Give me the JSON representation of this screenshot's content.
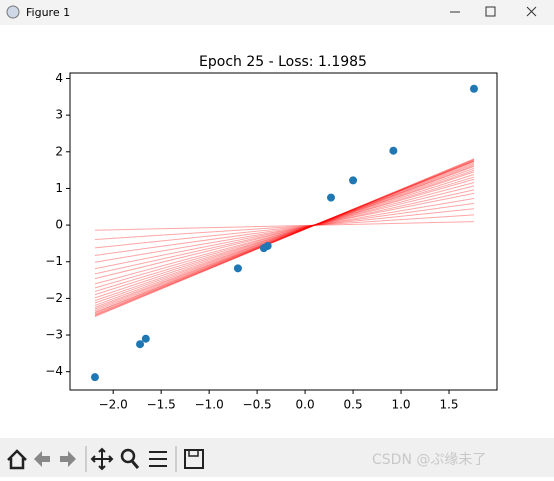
{
  "window": {
    "title": "Figure 1"
  },
  "watermark": "CSDN @ぷ缘未了",
  "chart_data": {
    "type": "scatter",
    "title": "Epoch 25 - Loss: 1.1985",
    "x": [
      -2.19,
      -1.72,
      -1.66,
      -0.7,
      -0.43,
      -0.39,
      0.27,
      0.5,
      0.92,
      1.76
    ],
    "values": [
      -4.15,
      -3.25,
      -3.1,
      -1.18,
      -0.63,
      -0.57,
      0.75,
      1.22,
      2.03,
      3.72
    ],
    "color": "#1f77b4",
    "fit_lines": {
      "color": "#ff0000",
      "slopes": [
        0.06,
        0.17,
        0.27,
        0.36,
        0.44,
        0.52,
        0.58,
        0.64,
        0.7,
        0.75,
        0.79,
        0.83,
        0.87,
        0.9,
        0.93,
        0.96,
        0.98,
        1.0,
        1.02,
        1.04,
        1.05,
        1.06,
        1.07,
        1.08,
        1.09
      ],
      "intercepts": [
        -0.01,
        -0.02,
        -0.03,
        -0.04,
        -0.05,
        -0.05,
        -0.06,
        -0.06,
        -0.07,
        -0.07,
        -0.08,
        -0.08,
        -0.08,
        -0.09,
        -0.09,
        -0.09,
        -0.1,
        -0.1,
        -0.1,
        -0.1,
        -0.1,
        -0.11,
        -0.11,
        -0.11,
        -0.11
      ]
    },
    "xlim": [
      -2.45,
      2.0
    ],
    "xticks": [
      {
        "value": -2,
        "label": "−2.0"
      },
      {
        "value": -1.5,
        "label": "−1.5"
      },
      {
        "value": -1,
        "label": "−1.0"
      },
      {
        "value": -0.5,
        "label": "−0.5"
      },
      {
        "value": 0,
        "label": "0.0"
      },
      {
        "value": 0.5,
        "label": "0.5"
      },
      {
        "value": 1,
        "label": "1.0"
      },
      {
        "value": 1.5,
        "label": "1.5"
      }
    ],
    "ylim": [
      -4.5,
      4.15
    ],
    "yticks": [
      {
        "value": -4,
        "label": "−4"
      },
      {
        "value": -3,
        "label": "−3"
      },
      {
        "value": -2,
        "label": "−2"
      },
      {
        "value": -1,
        "label": "−1"
      },
      0,
      1,
      2,
      3,
      4
    ]
  }
}
